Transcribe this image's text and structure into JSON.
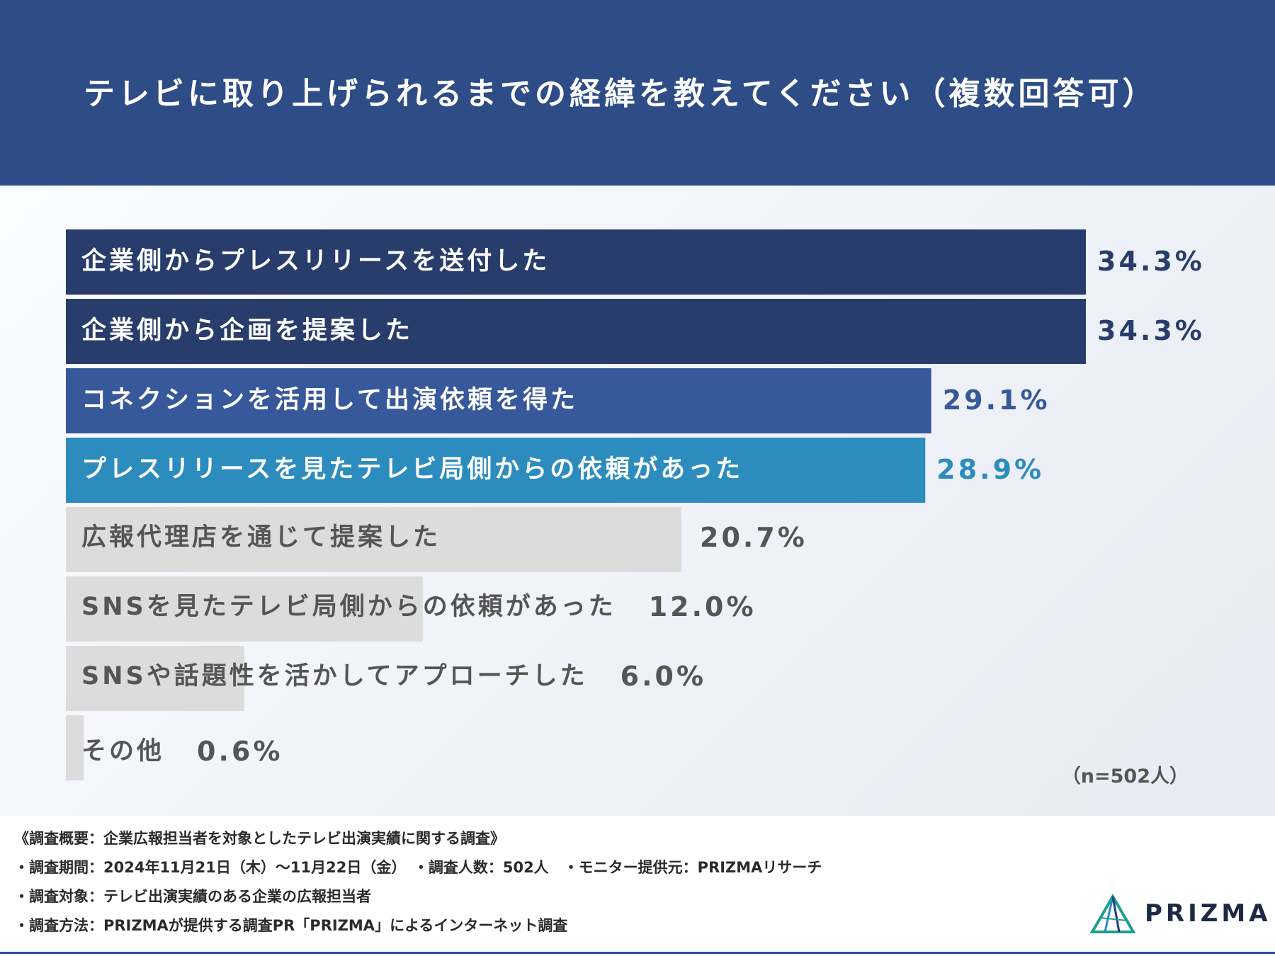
{
  "title": "テレビに取り上げられるまでの経緯を教えてください（複数回答可）",
  "sample_size": "（n=502人）",
  "chart_data": {
    "type": "bar",
    "orientation": "horizontal",
    "title": "テレビに取り上げられるまでの経緯を教えてください（複数回答可）",
    "xlim": [
      0,
      34.3
    ],
    "categories": [
      "企業側からプレスリリースを送付した",
      "企業側から企画を提案した",
      "コネクションを活用して出演依頼を得た",
      "プレスリリースを見たテレビ局側からの依頼があった",
      "広報代理店を通じて提案した",
      "SNSを見たテレビ局側からの依頼があった",
      "SNSや話題性を活かしてアプローチした",
      "その他"
    ],
    "values": [
      34.3,
      34.3,
      29.1,
      28.9,
      20.7,
      12.0,
      6.0,
      0.6
    ],
    "value_labels": [
      "34.3%",
      "34.3%",
      "29.1%",
      "28.9%",
      "20.7%",
      "12.0%",
      "6.0%",
      "0.6%"
    ],
    "bar_colors": [
      "#283d6b",
      "#283d6b",
      "#37589a",
      "#2d8cbe",
      "#dcdcdc",
      "#dcdcdc",
      "#dcdcdc",
      "#dcdcdc"
    ],
    "label_colors": [
      "#ffffff",
      "#ffffff",
      "#ffffff",
      "#ffffff",
      "#555555",
      "#555555",
      "#555555",
      "#555555"
    ],
    "value_colors": [
      "#283d6b",
      "#283d6b",
      "#37589a",
      "#2d8cbe",
      "#555555",
      "#555555",
      "#555555",
      "#555555"
    ],
    "grid": false,
    "legend": "none"
  },
  "footer": {
    "note1": "《調査概要：企業広報担当者を対象としたテレビ出演実績に関する調査》",
    "note2": "・調査期間：2024年11月21日（木）〜11月22日（金）　・調査人数：502人　・モニター提供元：PRIZMAリサーチ",
    "note3": "・調査対象：テレビ出演実績のある企業の広報担当者",
    "note4": "・調査方法：PRIZMAが提供する調査PR「PRIZMA」によるインターネット調査",
    "logo_text": "PRIZMA"
  }
}
